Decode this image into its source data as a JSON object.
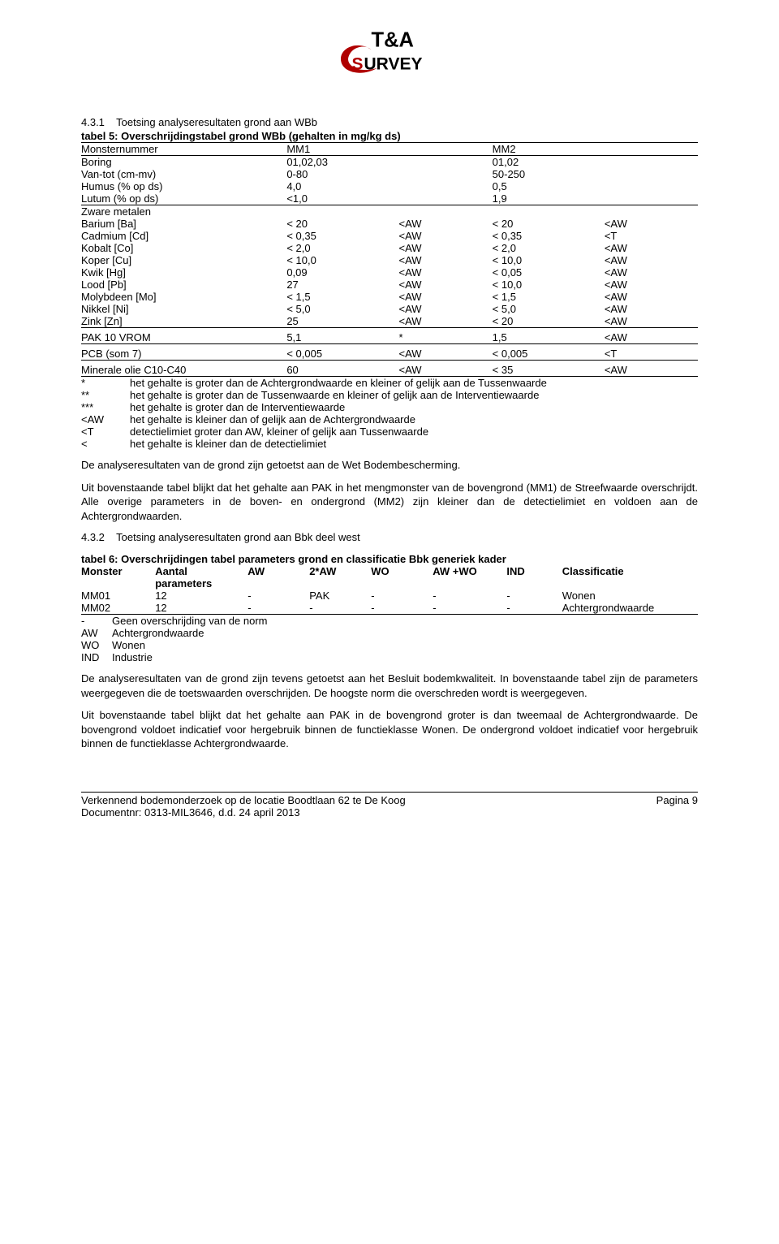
{
  "logo": {
    "top_text": "T&A",
    "bottom_text": "SURVEY"
  },
  "section_431": {
    "number": "4.3.1",
    "title": "Toetsing analyseresultaten grond aan WBb",
    "table_title": "tabel 5: Overschrijdingstabel grond WBb (gehalten in mg/kg ds)",
    "header": {
      "monsternummer": "Monsternummer",
      "mm1": "MM1",
      "mm2": "MM2",
      "boring": "Boring",
      "boring_v1": "01,02,03",
      "boring_v2": "01,02",
      "vantot": "Van-tot (cm-mv)",
      "vantot_v1": "0-80",
      "vantot_v2": "50-250",
      "humus": "Humus (% op ds)",
      "humus_v1": "4,0",
      "humus_v2": "0,5",
      "lutum": "Lutum (% op ds)",
      "lutum_v1": "<1,0",
      "lutum_v2": "1,9"
    },
    "zware_label": "Zware metalen",
    "rows": [
      {
        "name": "Barium [Ba]",
        "v1": "< 20",
        "c1": "<AW",
        "v2": "< 20",
        "c2": "<AW"
      },
      {
        "name": "Cadmium [Cd]",
        "v1": "< 0,35",
        "c1": "<AW",
        "v2": "< 0,35",
        "c2": "<T"
      },
      {
        "name": "Kobalt [Co]",
        "v1": "< 2,0",
        "c1": "<AW",
        "v2": "< 2,0",
        "c2": "<AW"
      },
      {
        "name": "Koper [Cu]",
        "v1": "< 10,0",
        "c1": "<AW",
        "v2": "< 10,0",
        "c2": "<AW"
      },
      {
        "name": "Kwik [Hg]",
        "v1": "0,09",
        "c1": "<AW",
        "v2": "< 0,05",
        "c2": "<AW"
      },
      {
        "name": "Lood [Pb]",
        "v1": "27",
        "c1": "<AW",
        "v2": "< 10,0",
        "c2": "<AW"
      },
      {
        "name": "Molybdeen [Mo]",
        "v1": "< 1,5",
        "c1": "<AW",
        "v2": "< 1,5",
        "c2": "<AW"
      },
      {
        "name": "Nikkel [Ni]",
        "v1": "< 5,0",
        "c1": "<AW",
        "v2": "< 5,0",
        "c2": "<AW"
      },
      {
        "name": "Zink [Zn]",
        "v1": "25",
        "c1": "<AW",
        "v2": "< 20",
        "c2": "<AW"
      }
    ],
    "pak": {
      "name": "PAK 10 VROM",
      "v1": "5,1",
      "c1": "*",
      "v2": "1,5",
      "c2": "<AW"
    },
    "pcb": {
      "name": "PCB (som 7)",
      "v1": "< 0,005",
      "c1": "<AW",
      "v2": "< 0,005",
      "c2": "<T"
    },
    "olie": {
      "name": "Minerale olie C10-C40",
      "v1": "60",
      "c1": "<AW",
      "v2": "< 35",
      "c2": "<AW"
    }
  },
  "legend5": [
    {
      "k": "*",
      "t": "het gehalte is groter dan de Achtergrondwaarde en kleiner of gelijk aan de Tussenwaarde"
    },
    {
      "k": "**",
      "t": "het gehalte is groter dan de Tussenwaarde en kleiner of gelijk aan de Interventiewaarde"
    },
    {
      "k": "***",
      "t": "het gehalte is groter dan de Interventiewaarde"
    },
    {
      "k": "<AW",
      "t": "het gehalte is kleiner dan of gelijk aan de Achtergrondwaarde"
    },
    {
      "k": "<T",
      "t": "detectielimiet groter dan AW, kleiner of gelijk aan Tussenwaarde"
    },
    {
      "k": "<",
      "t": "het gehalte is kleiner dan de detectielimiet"
    }
  ],
  "para1": "De analyseresultaten van de grond zijn getoetst aan de Wet Bodembescherming.",
  "para2": "Uit bovenstaande tabel blijkt dat het gehalte aan PAK in het mengmonster van de bovengrond (MM1) de Streefwaarde overschrijdt. Alle overige parameters in de boven- en ondergrond (MM2) zijn kleiner dan de detectielimiet en voldoen aan de Achtergrondwaarden.",
  "section_432": {
    "number": "4.3.2",
    "title": "Toetsing analyseresultaten grond aan Bbk deel west",
    "table_title": "tabel 6: Overschrijdingen tabel parameters grond en classificatie Bbk generiek kader",
    "head": [
      "Monster",
      "Aantal parameters",
      "AW",
      "2*AW",
      "WO",
      "AW +WO",
      "IND",
      "Classificatie"
    ],
    "rows": [
      [
        "MM01",
        "12",
        "-",
        "PAK",
        "-",
        "-",
        "-",
        "Wonen"
      ],
      [
        "MM02",
        "12",
        "-",
        "-",
        "-",
        "-",
        "-",
        "Achtergrondwaarde"
      ]
    ],
    "col_widths": [
      "12%",
      "15%",
      "10%",
      "10%",
      "10%",
      "12%",
      "9%",
      "22%"
    ]
  },
  "legend6": [
    {
      "k": "-",
      "t": "Geen overschrijding van de norm"
    },
    {
      "k": "AW",
      "t": "Achtergrondwaarde"
    },
    {
      "k": "WO",
      "t": "Wonen"
    },
    {
      "k": "IND",
      "t": "Industrie"
    }
  ],
  "para3": "De analyseresultaten van de grond zijn tevens getoetst aan het Besluit bodemkwaliteit. In bovenstaande tabel zijn de parameters weergegeven die de toetswaarden overschrijden. De hoogste norm die overschreden wordt is weergegeven.",
  "para4": "Uit bovenstaande tabel blijkt dat het gehalte aan PAK in de bovengrond groter is dan tweemaal de Achtergrondwaarde. De bovengrond voldoet indicatief voor hergebruik binnen de functieklasse Wonen. De ondergrond voldoet indicatief voor hergebruik binnen de functieklasse Achtergrondwaarde.",
  "footer": {
    "left1": "Verkennend bodemonderzoek op de locatie Boodtlaan 62 te De Koog",
    "left2": "Documentnr: 0313-MIL3646, d.d. 24 april 2013",
    "right": "Pagina 9"
  },
  "colors": {
    "text": "#000000",
    "bg": "#ffffff",
    "red": "#b00000"
  }
}
